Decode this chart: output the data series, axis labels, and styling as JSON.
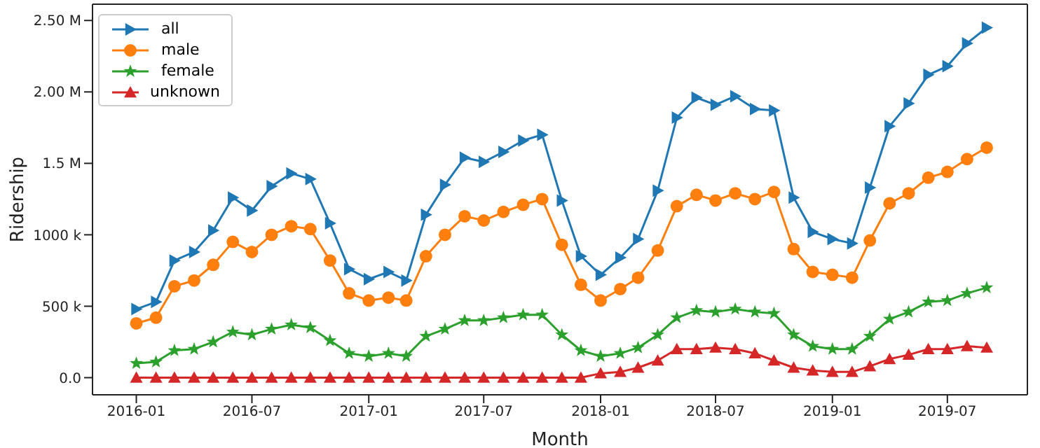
{
  "chart_data": {
    "type": "line",
    "xlabel": "Month",
    "ylabel": "Ridership",
    "x": [
      "2016-01",
      "2016-02",
      "2016-03",
      "2016-04",
      "2016-05",
      "2016-06",
      "2016-07",
      "2016-08",
      "2016-09",
      "2016-10",
      "2016-11",
      "2016-12",
      "2017-01",
      "2017-02",
      "2017-03",
      "2017-04",
      "2017-05",
      "2017-06",
      "2017-07",
      "2017-08",
      "2017-09",
      "2017-10",
      "2017-11",
      "2017-12",
      "2018-01",
      "2018-02",
      "2018-03",
      "2018-04",
      "2018-05",
      "2018-06",
      "2018-07",
      "2018-08",
      "2018-09",
      "2018-10",
      "2018-11",
      "2018-12",
      "2019-01",
      "2019-02",
      "2019-03",
      "2019-04",
      "2019-05",
      "2019-06",
      "2019-07",
      "2019-08",
      "2019-09"
    ],
    "series": [
      {
        "name": "all",
        "color": "#1f77b4",
        "marker": "triangle-right",
        "values": [
          480000,
          530000,
          820000,
          880000,
          1030000,
          1260000,
          1170000,
          1340000,
          1430000,
          1390000,
          1080000,
          760000,
          690000,
          740000,
          680000,
          1140000,
          1350000,
          1540000,
          1510000,
          1580000,
          1660000,
          1700000,
          1240000,
          850000,
          720000,
          840000,
          970000,
          1310000,
          1820000,
          1960000,
          1910000,
          1970000,
          1880000,
          1870000,
          1260000,
          1020000,
          970000,
          940000,
          1330000,
          1760000,
          1920000,
          2120000,
          2180000,
          2340000,
          2450000
        ]
      },
      {
        "name": "male",
        "color": "#ff7f0e",
        "marker": "circle",
        "values": [
          380000,
          420000,
          640000,
          680000,
          790000,
          950000,
          880000,
          1000000,
          1060000,
          1040000,
          820000,
          590000,
          540000,
          560000,
          540000,
          850000,
          1000000,
          1130000,
          1100000,
          1160000,
          1210000,
          1250000,
          930000,
          650000,
          540000,
          620000,
          700000,
          890000,
          1200000,
          1280000,
          1240000,
          1290000,
          1250000,
          1300000,
          900000,
          740000,
          720000,
          700000,
          960000,
          1220000,
          1290000,
          1400000,
          1440000,
          1530000,
          1610000
        ]
      },
      {
        "name": "female",
        "color": "#2ca02c",
        "marker": "star",
        "values": [
          100000,
          110000,
          190000,
          200000,
          250000,
          320000,
          300000,
          340000,
          370000,
          350000,
          260000,
          170000,
          150000,
          170000,
          150000,
          290000,
          340000,
          400000,
          400000,
          420000,
          440000,
          440000,
          300000,
          190000,
          150000,
          170000,
          210000,
          300000,
          420000,
          470000,
          460000,
          480000,
          460000,
          450000,
          300000,
          220000,
          200000,
          200000,
          290000,
          410000,
          460000,
          530000,
          540000,
          590000,
          630000
        ]
      },
      {
        "name": "unknown",
        "color": "#d62728",
        "marker": "triangle",
        "values": [
          0,
          0,
          0,
          0,
          0,
          0,
          0,
          0,
          0,
          0,
          0,
          0,
          0,
          0,
          0,
          0,
          0,
          0,
          0,
          0,
          0,
          0,
          0,
          0,
          30000,
          40000,
          70000,
          120000,
          200000,
          200000,
          210000,
          200000,
          170000,
          120000,
          70000,
          50000,
          40000,
          40000,
          80000,
          130000,
          160000,
          200000,
          200000,
          220000,
          210000
        ]
      }
    ],
    "xlim": [
      "2015-10-24",
      "2019-11-04"
    ],
    "xticks": [
      "2016-01",
      "2016-07",
      "2017-01",
      "2017-07",
      "2018-01",
      "2018-07",
      "2019-01",
      "2019-07"
    ],
    "ylim": [
      -120000,
      2614000
    ],
    "yticks": [
      {
        "value": 0,
        "label": "0.0"
      },
      {
        "value": 500000,
        "label": "500 k"
      },
      {
        "value": 1000000,
        "label": "1000 k"
      },
      {
        "value": 1500000,
        "label": "1.5 M"
      },
      {
        "value": 2000000,
        "label": "2.00 M"
      },
      {
        "value": 2500000,
        "label": "2.50 M"
      }
    ],
    "grid": false,
    "legend": "top left",
    "line_style": "solid"
  }
}
